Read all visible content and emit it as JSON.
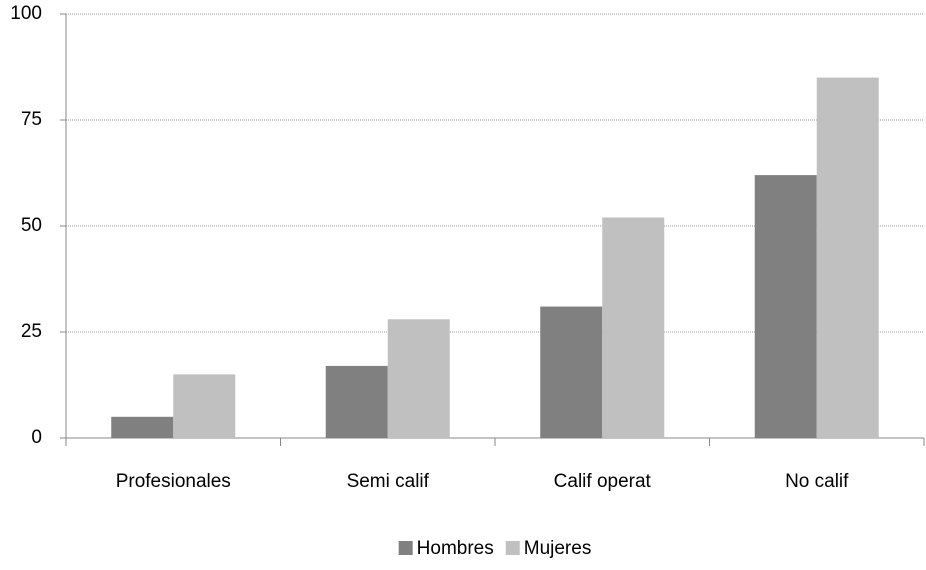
{
  "chart_data": {
    "type": "bar",
    "categories": [
      "Profesionales",
      "Semi calif",
      "Calif operat",
      "No calif"
    ],
    "series": [
      {
        "name": "Hombres",
        "color": "#808080",
        "values": [
          5,
          17,
          31,
          62
        ]
      },
      {
        "name": "Mujeres",
        "color": "#c0c0c0",
        "values": [
          15,
          28,
          52,
          85
        ]
      }
    ],
    "ylim": [
      0,
      100
    ],
    "yticks": [
      0,
      25,
      50,
      75,
      100
    ],
    "grid": true,
    "legend": "bottom"
  }
}
